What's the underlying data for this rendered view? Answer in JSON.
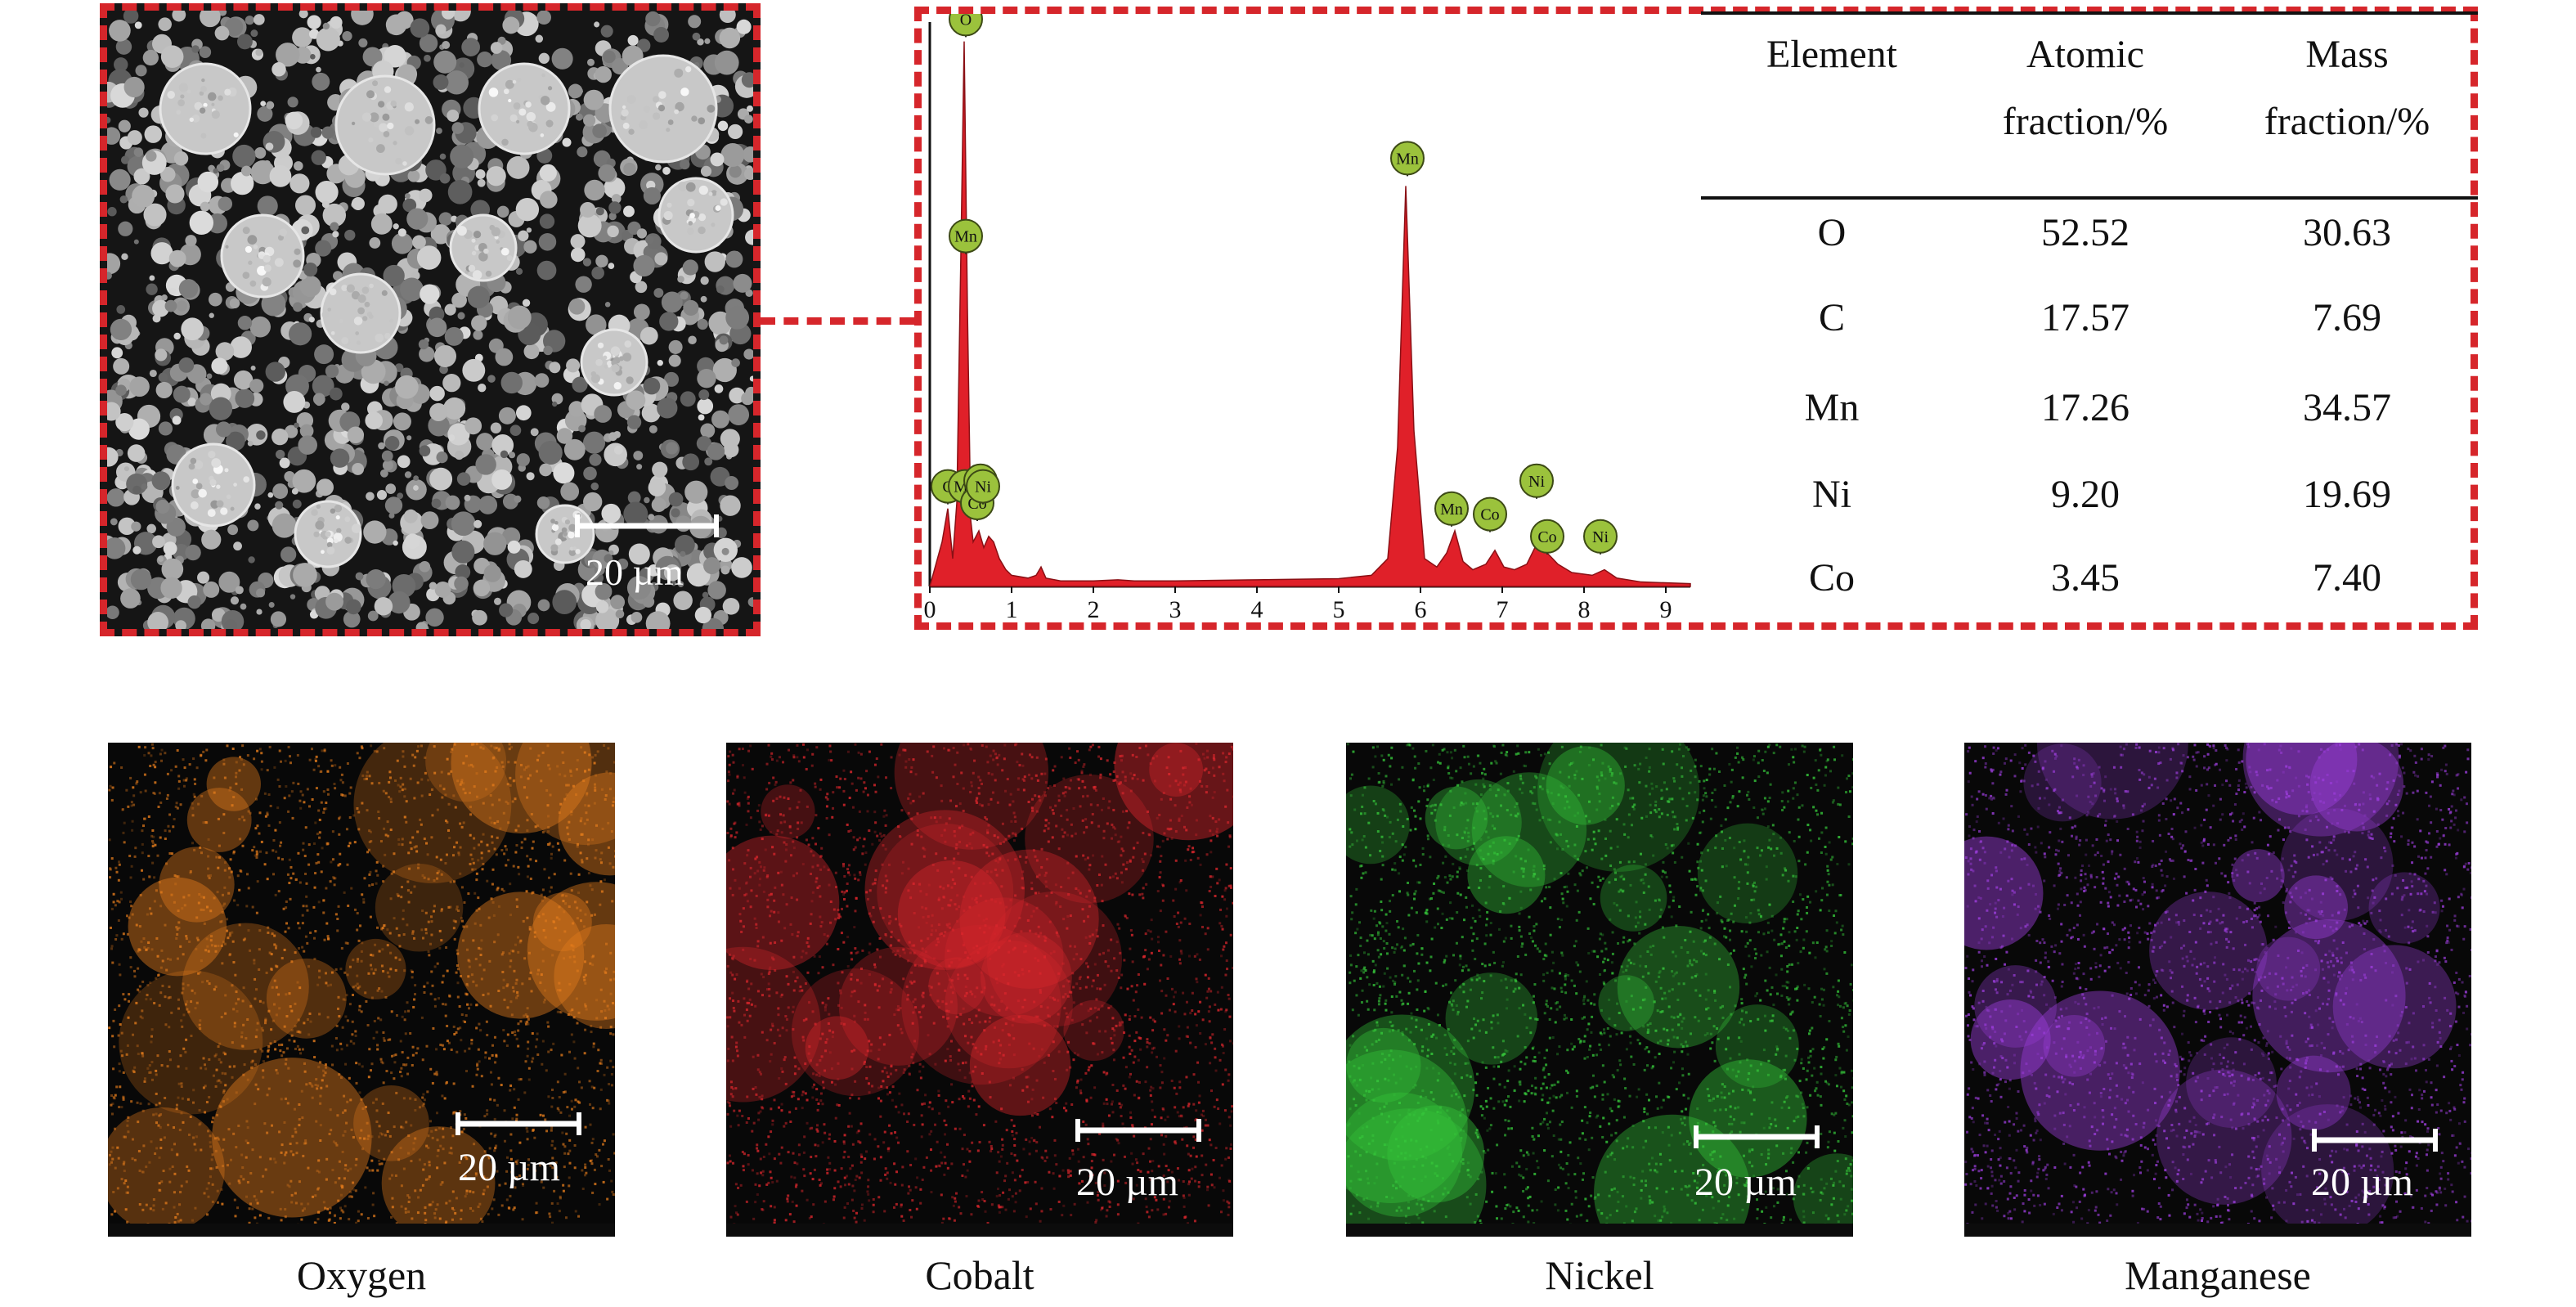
{
  "sem_image": {
    "scalebar_label": "20 µm"
  },
  "eds_spectrum": {
    "chart_data": {
      "type": "line",
      "x_ticks": [
        "0",
        "1",
        "2",
        "3",
        "4",
        "5",
        "6",
        "7",
        "8",
        "9"
      ],
      "xlim": [
        0,
        9.3
      ],
      "ylim": [
        0,
        1.0
      ],
      "series": [
        {
          "x": [
            0,
            0.15,
            0.22,
            0.28,
            0.33,
            0.38,
            0.42,
            0.46,
            0.5,
            0.53,
            0.6,
            0.66,
            0.72,
            0.78,
            0.85,
            0.93,
            1.0,
            1.2,
            1.3,
            1.36,
            1.42,
            1.6,
            2.0,
            2.3,
            2.5,
            3.0,
            4.0,
            5.0,
            5.4,
            5.6,
            5.72,
            5.82,
            5.92,
            6.05,
            6.2,
            6.32,
            6.42,
            6.52,
            6.64,
            6.8,
            6.91,
            7.02,
            7.15,
            7.3,
            7.45,
            7.55,
            7.68,
            7.85,
            8.1,
            8.25,
            8.4,
            8.7,
            9.3
          ],
          "y": [
            0.0,
            0.08,
            0.14,
            0.05,
            0.15,
            0.6,
            0.98,
            0.5,
            0.12,
            0.08,
            0.1,
            0.07,
            0.09,
            0.08,
            0.05,
            0.03,
            0.02,
            0.015,
            0.02,
            0.035,
            0.015,
            0.01,
            0.01,
            0.012,
            0.01,
            0.01,
            0.012,
            0.014,
            0.02,
            0.05,
            0.25,
            0.72,
            0.28,
            0.05,
            0.035,
            0.06,
            0.1,
            0.045,
            0.03,
            0.04,
            0.065,
            0.035,
            0.03,
            0.04,
            0.085,
            0.06,
            0.04,
            0.025,
            0.02,
            0.03,
            0.015,
            0.008,
            0.005
          ]
        }
      ],
      "peak_labels": [
        {
          "text": "O",
          "x": 0.44,
          "y": 1.02
        },
        {
          "text": "Mn",
          "x": 0.44,
          "y": 0.63
        },
        {
          "text": "C",
          "x": 0.22,
          "y": 0.18
        },
        {
          "text": "Mn",
          "x": 0.43,
          "y": 0.18
        },
        {
          "text": "Co",
          "x": 0.58,
          "y": 0.15
        },
        {
          "text": "Ni",
          "x": 0.62,
          "y": 0.19
        },
        {
          "text": "Ni",
          "x": 0.65,
          "y": 0.18
        },
        {
          "text": "Mn",
          "x": 5.84,
          "y": 0.77
        },
        {
          "text": "Mn",
          "x": 6.38,
          "y": 0.14
        },
        {
          "text": "Co",
          "x": 6.85,
          "y": 0.13
        },
        {
          "text": "Ni",
          "x": 7.42,
          "y": 0.19
        },
        {
          "text": "Co",
          "x": 7.55,
          "y": 0.09
        },
        {
          "text": "Ni",
          "x": 8.2,
          "y": 0.09
        }
      ],
      "colors": {
        "fill": "#e02029",
        "label_fill": "#9bc23c",
        "label_stroke": "#3d4a16"
      }
    }
  },
  "table": {
    "headers": {
      "element": "Element",
      "atomic_line1": "Atomic",
      "atomic_line2": "fraction/%",
      "mass_line1": "Mass",
      "mass_line2": "fraction/%"
    },
    "rows": [
      {
        "element": "O",
        "atomic": "52.52",
        "mass": "30.63"
      },
      {
        "element": "C",
        "atomic": "17.57",
        "mass": "7.69"
      },
      {
        "element": "Mn",
        "atomic": "17.26",
        "mass": "34.57"
      },
      {
        "element": "Ni",
        "atomic": "9.20",
        "mass": "19.69"
      },
      {
        "element": "Co",
        "atomic": "3.45",
        "mass": "7.40"
      }
    ]
  },
  "maps": [
    {
      "label": "Oxygen",
      "scalebar_label": "20 µm",
      "color": "#e07a1c"
    },
    {
      "label": "Cobalt",
      "scalebar_label": "20 µm",
      "color": "#d8262c"
    },
    {
      "label": "Nickel",
      "scalebar_label": "20 µm",
      "color": "#35c43a"
    },
    {
      "label": "Manganese",
      "scalebar_label": "20 µm",
      "color": "#9a3dd9"
    }
  ]
}
